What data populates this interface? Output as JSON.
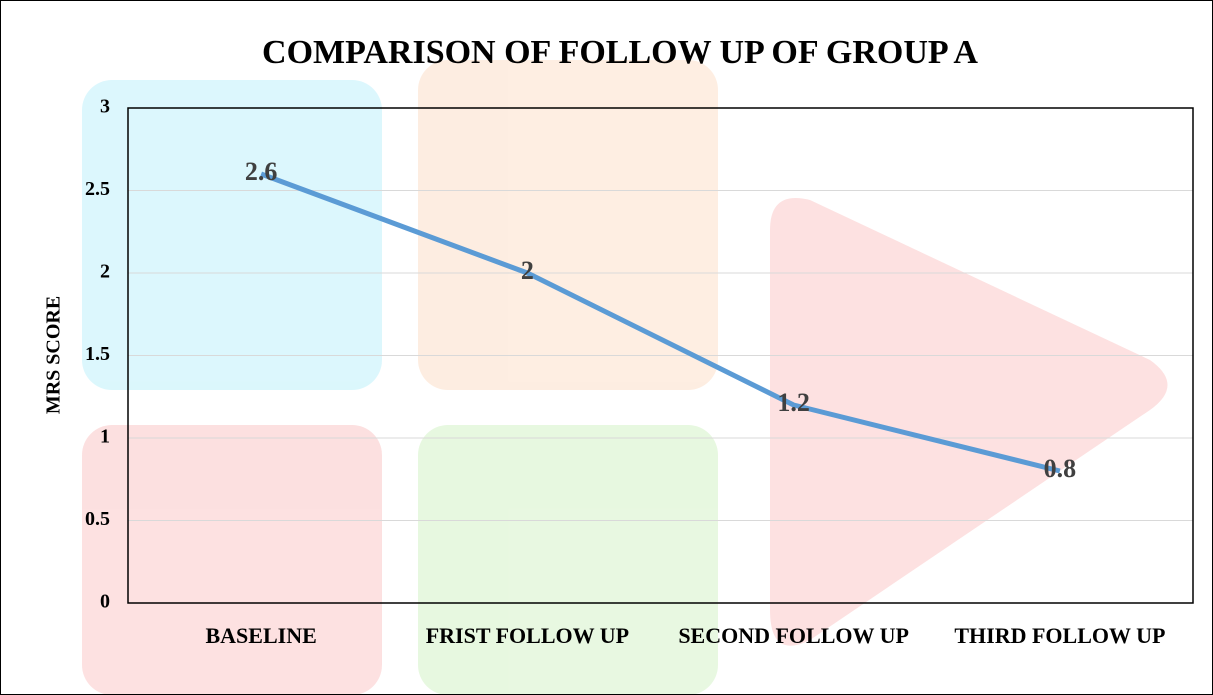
{
  "chart_data": {
    "type": "line",
    "title": "COMPARISON OF FOLLOW UP OF GROUP A",
    "y_label": "MRS  SCORE",
    "categories": [
      "BASELINE",
      "FRIST FOLLOW UP",
      "SECOND FOLLOW UP",
      "THIRD FOLLOW UP"
    ],
    "series": [
      {
        "name": "MRS SCORE",
        "color": "#5b9bd5",
        "values": [
          2.6,
          2,
          1.2,
          0.8
        ]
      }
    ],
    "ylim": [
      0,
      3
    ],
    "yticks": [
      0,
      0.5,
      1,
      1.5,
      2,
      2.5,
      3
    ],
    "grid": true
  }
}
